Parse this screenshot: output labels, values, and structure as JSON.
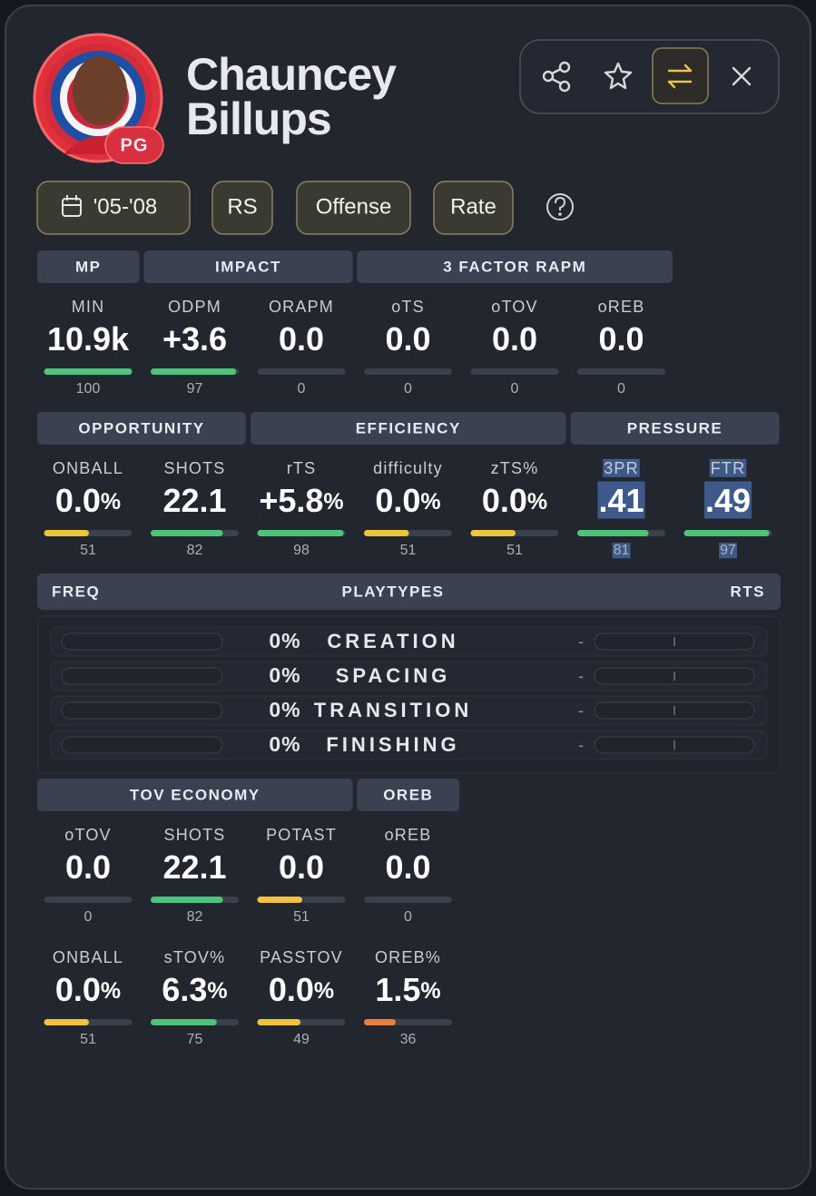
{
  "player": {
    "name_line1": "Chauncey",
    "name_line2": "Billups",
    "position": "PG"
  },
  "filters": [
    "'05-'08",
    "RS",
    "Offense",
    "Rate"
  ],
  "stat_rows": [
    {
      "groups": [
        {
          "title": "MP",
          "stats": [
            {
              "label": "MIN",
              "value": "10.9k",
              "pct": 100
            }
          ]
        },
        {
          "title": "IMPACT",
          "stats": [
            {
              "label": "ODPM",
              "value": "+3.6",
              "pct": 97
            },
            {
              "label": "ORAPM",
              "value": "0.0",
              "pct": 0
            }
          ]
        },
        {
          "title": "3 FACTOR RAPM",
          "stats": [
            {
              "label": "oTS",
              "value": "0.0",
              "pct": 0
            },
            {
              "label": "oTOV",
              "value": "0.0",
              "pct": 0
            },
            {
              "label": "oREB",
              "value": "0.0",
              "pct": 0
            }
          ]
        }
      ]
    },
    {
      "groups": [
        {
          "title": "OPPORTUNITY",
          "stats": [
            {
              "label": "ONBALL",
              "value": "0.0",
              "unit": "%",
              "pct": 51
            },
            {
              "label": "SHOTS",
              "value": "22.1",
              "pct": 82
            }
          ]
        },
        {
          "title": "EFFICIENCY",
          "stats": [
            {
              "label": "rTS",
              "value": "+5.8",
              "unit": "%",
              "pct": 98
            },
            {
              "label": "difficulty",
              "value": "0.0",
              "unit": "%",
              "pct": 51
            },
            {
              "label": "zTS%",
              "value": "0.0",
              "unit": "%",
              "pct": 51
            }
          ]
        },
        {
          "title": "PRESSURE",
          "stats": [
            {
              "label": "3PR",
              "value": ".41",
              "pct": 81,
              "highlighted": true
            },
            {
              "label": "FTR",
              "value": ".49",
              "pct": 97,
              "highlighted": true
            }
          ]
        }
      ]
    },
    {
      "groups": [
        {
          "title": "TOV ECONOMY",
          "stats": [
            {
              "label": "oTOV",
              "value": "0.0",
              "pct": 0
            },
            {
              "label": "SHOTS",
              "value": "22.1",
              "pct": 82
            },
            {
              "label": "POTAST",
              "value": "0.0",
              "pct": 51
            }
          ]
        },
        {
          "title": "OREB",
          "stats": [
            {
              "label": "oREB",
              "value": "0.0",
              "pct": 0
            }
          ]
        }
      ]
    },
    {
      "groups": [
        {
          "stats": [
            {
              "label": "ONBALL",
              "value": "0.0",
              "unit": "%",
              "pct": 51
            },
            {
              "label": "sTOV%",
              "value": "6.3",
              "unit": "%",
              "pct": 75
            },
            {
              "label": "PASSTOV",
              "value": "0.0",
              "unit": "%",
              "pct": 49
            },
            {
              "label": "OREB%",
              "value": "1.5",
              "unit": "%",
              "pct": 36
            }
          ]
        }
      ]
    }
  ],
  "playtypes": {
    "headers": {
      "freq": "FREQ",
      "title": "PLAYTYPES",
      "rts": "RTS"
    },
    "rows": [
      {
        "freq": "0%",
        "name": "CREATION",
        "rts": "-"
      },
      {
        "freq": "0%",
        "name": "SPACING",
        "rts": "-"
      },
      {
        "freq": "0%",
        "name": "TRANSITION",
        "rts": "-"
      },
      {
        "freq": "0%",
        "name": "FINISHING",
        "rts": "-"
      }
    ]
  }
}
